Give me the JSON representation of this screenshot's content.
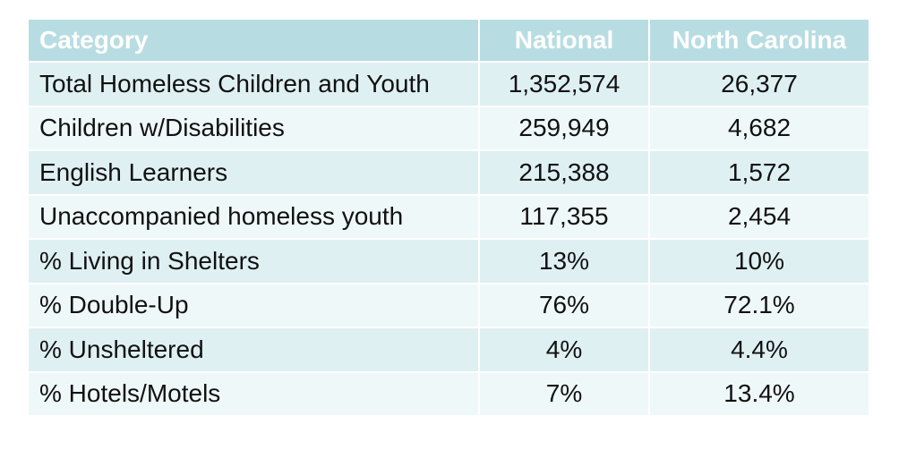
{
  "chart_data": {
    "type": "table",
    "columns": [
      "Category",
      "National",
      "North Carolina"
    ],
    "rows": [
      [
        "Total Homeless Children and Youth",
        "1,352,574",
        "26,377"
      ],
      [
        "Children w/Disabilities",
        "259,949",
        "4,682"
      ],
      [
        "English Learners",
        "215,388",
        "1,572"
      ],
      [
        "Unaccompanied homeless youth",
        "117,355",
        "2,454"
      ],
      [
        "% Living in Shelters",
        "13%",
        "10%"
      ],
      [
        "% Double-Up",
        "76%",
        "72.1%"
      ],
      [
        "% Unsheltered",
        "4%",
        "4.4%"
      ],
      [
        "% Hotels/Motels",
        "7%",
        "13.4%"
      ]
    ]
  },
  "colors": {
    "header_bg": "#b7dde2",
    "header_text": "#ffffff",
    "band_a": "#dff0f2",
    "band_b": "#eff8f9"
  }
}
